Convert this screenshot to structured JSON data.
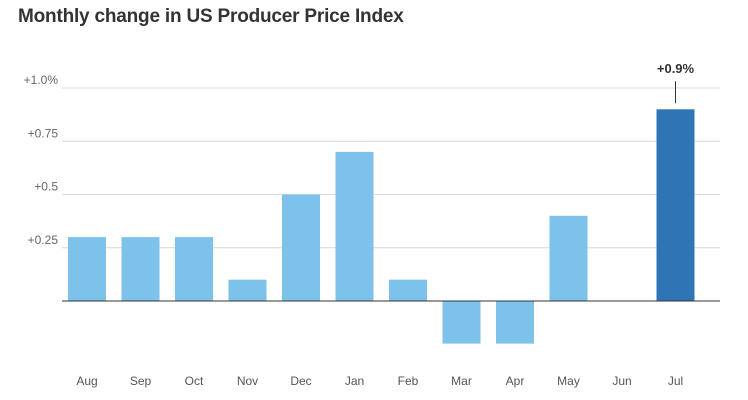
{
  "chart_data": {
    "type": "bar",
    "title": "Monthly change in US Producer Price Index",
    "xlabel": "",
    "ylabel": "",
    "categories": [
      "Aug",
      "Sep",
      "Oct",
      "Nov",
      "Dec",
      "Jan",
      "Feb",
      "Mar",
      "Apr",
      "May",
      "Jun",
      "Jul"
    ],
    "values": [
      0.3,
      0.3,
      0.3,
      0.1,
      0.5,
      0.7,
      0.1,
      -0.2,
      -0.2,
      0.4,
      0.0,
      0.9
    ],
    "ylim": [
      -0.2,
      1.0
    ],
    "yticks": [
      {
        "value": 0.25,
        "label": "+0.25"
      },
      {
        "value": 0.5,
        "label": "+0.5"
      },
      {
        "value": 0.75,
        "label": "+0.75"
      },
      {
        "value": 1.0,
        "label": "+1.0%"
      }
    ],
    "grid": true,
    "colors": {
      "default": "#7dc2ea",
      "highlight": "#2f74b5",
      "grid": "#d9d9d9",
      "axis": "#333333"
    },
    "highlight_index": 11,
    "annotation": {
      "index": 11,
      "label": "+0.9%"
    }
  }
}
